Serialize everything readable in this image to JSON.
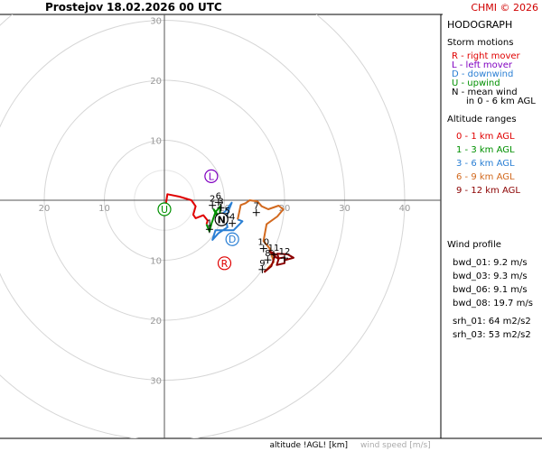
{
  "header": {
    "location": "Prostejov",
    "datetime": "18.02.2026 00 UTC",
    "copyright": "CHMI © 2026"
  },
  "panel": {
    "title": "HODOGRAPH",
    "storm_motions_title": "Storm motions",
    "storm_motions": [
      {
        "text": "R - right mover",
        "color": "#e00000"
      },
      {
        "text": "L - left mover",
        "color": "#8000c0"
      },
      {
        "text": "D - downwind",
        "color": "#2a7fd4"
      },
      {
        "text": "U - upwind",
        "color": "#009000"
      },
      {
        "text": "N - mean wind",
        "color": "#000000"
      },
      {
        "text": "in 0 - 6 km AGL",
        "color": "#000000"
      }
    ],
    "altitude_title": "Altitude ranges",
    "altitude_ranges": [
      {
        "text": "0 - 1 km AGL",
        "color": "#e00000"
      },
      {
        "text": "1 - 3 km AGL",
        "color": "#009000"
      },
      {
        "text": "3 - 6 km AGL",
        "color": "#2a7fd4"
      },
      {
        "text": "6 - 9 km AGL",
        "color": "#d2691e"
      },
      {
        "text": "9 - 12 km AGL",
        "color": "#8b0000"
      }
    ],
    "wind_profile_title": "Wind profile",
    "wind_profile": [
      "bwd_01: 9.2 m/s",
      "bwd_03: 9.3 m/s",
      "bwd_06: 9.1 m/s",
      "bwd_08: 19.7 m/s"
    ],
    "srh": [
      "srh_01: 64 m2/s2",
      "srh_03: 53 m2/s2"
    ]
  },
  "footer": {
    "altitude_label": "altitude !AGL! [km]",
    "windspeed_label": "wind speed [m/s]"
  },
  "chart_data": {
    "type": "line",
    "title": "HODOGRAPH",
    "xlim": [
      -25,
      45
    ],
    "ylim": [
      -40,
      30
    ],
    "rings": [
      10,
      20,
      30,
      40
    ],
    "ring_labels": {
      "up": [
        "10",
        "20",
        "30"
      ],
      "down": [
        "10",
        "20",
        "30"
      ],
      "left": [
        "10",
        "20"
      ],
      "right": [
        "10",
        "20",
        "30",
        "40"
      ]
    },
    "series": [
      {
        "range": "0 - 1 km AGL",
        "color": "#e00000",
        "u": [
          0.2,
          0.5,
          2.5,
          4.5,
          5.2,
          4.8,
          5.2,
          6.5,
          7.2,
          7.0
        ],
        "v": [
          -1.0,
          1.0,
          0.6,
          0.0,
          -1.0,
          -2.4,
          -3.0,
          -2.5,
          -3.4,
          -4.0
        ]
      },
      {
        "range": "1 - 3 km AGL",
        "color": "#009000",
        "u": [
          7.0,
          7.5,
          7.8,
          8.5,
          9.3,
          9.2,
          8.2,
          8.8
        ],
        "v": [
          -4.0,
          -5.2,
          -4.0,
          -2.0,
          -1.0,
          -2.8,
          -1.5,
          -2.7
        ]
      },
      {
        "range": "3 - 6 km AGL",
        "color": "#2a7fd4",
        "u": [
          8.8,
          10.0,
          11.2,
          10.2,
          10.5,
          9.0,
          8.0,
          8.5,
          11.5,
          13.0,
          12.2
        ],
        "v": [
          -2.7,
          -2.0,
          -0.4,
          -3.0,
          -4.5,
          -5.5,
          -6.6,
          -5.0,
          -5.0,
          -3.5,
          -3.2
        ]
      },
      {
        "range": "6 - 9 km AGL",
        "color": "#d2691e",
        "u": [
          12.2,
          12.7,
          13.5,
          14.2,
          15.5,
          16.2,
          17.3,
          19.0,
          19.8,
          18.8,
          17.0,
          16.5,
          17.5,
          18.2,
          16.6
        ],
        "v": [
          -3.2,
          -0.8,
          -0.5,
          0.0,
          -0.2,
          -1.0,
          -1.5,
          -0.9,
          -1.5,
          -2.7,
          -4.0,
          -6.8,
          -8.0,
          -10.3,
          -12.0
        ]
      },
      {
        "range": "9 - 12 km AGL",
        "color": "#8b0000",
        "u": [
          16.6,
          17.8,
          18.5,
          17.5,
          18.3,
          19.0,
          18.7,
          20.0,
          20.0,
          19.0,
          18.8,
          20.5,
          21.5,
          20.0
        ],
        "v": [
          -12.0,
          -11.0,
          -9.0,
          -8.5,
          -9.3,
          -9.8,
          -10.8,
          -10.5,
          -9.5,
          -9.7,
          -8.9,
          -9.0,
          -9.6,
          -10.0
        ]
      }
    ],
    "height_labels": [
      {
        "text": "1",
        "u": 7.5,
        "v": -3.8
      },
      {
        "text": "2",
        "u": 8.0,
        "v": 0.2
      },
      {
        "text": "3",
        "u": 9.4,
        "v": -0.2
      },
      {
        "text": "4",
        "u": 11.3,
        "v": -2.8
      },
      {
        "text": "5",
        "u": 10.5,
        "v": -1.8
      },
      {
        "text": "6",
        "u": 9.0,
        "v": 0.7
      },
      {
        "text": "7",
        "u": 15.3,
        "v": -1.0
      },
      {
        "text": "8",
        "u": 17.2,
        "v": -8.9
      },
      {
        "text": "9",
        "u": 16.3,
        "v": -10.5
      },
      {
        "text": "10",
        "u": 16.5,
        "v": -7.0
      },
      {
        "text": "11",
        "u": 18.2,
        "v": -8.0
      },
      {
        "text": "12",
        "u": 20.0,
        "v": -8.6
      }
    ],
    "storm_markers": [
      {
        "letter": "U",
        "u": 0.0,
        "v": -1.5,
        "color": "#009000"
      },
      {
        "letter": "L",
        "u": 7.8,
        "v": 4.0,
        "color": "#8000c0"
      },
      {
        "letter": "N",
        "u": 9.5,
        "v": -3.2,
        "color": "#000000"
      },
      {
        "letter": "D",
        "u": 11.3,
        "v": -6.5,
        "color": "#2a7fd4"
      },
      {
        "letter": "R",
        "u": 10.0,
        "v": -10.5,
        "color": "#e00000"
      }
    ]
  }
}
